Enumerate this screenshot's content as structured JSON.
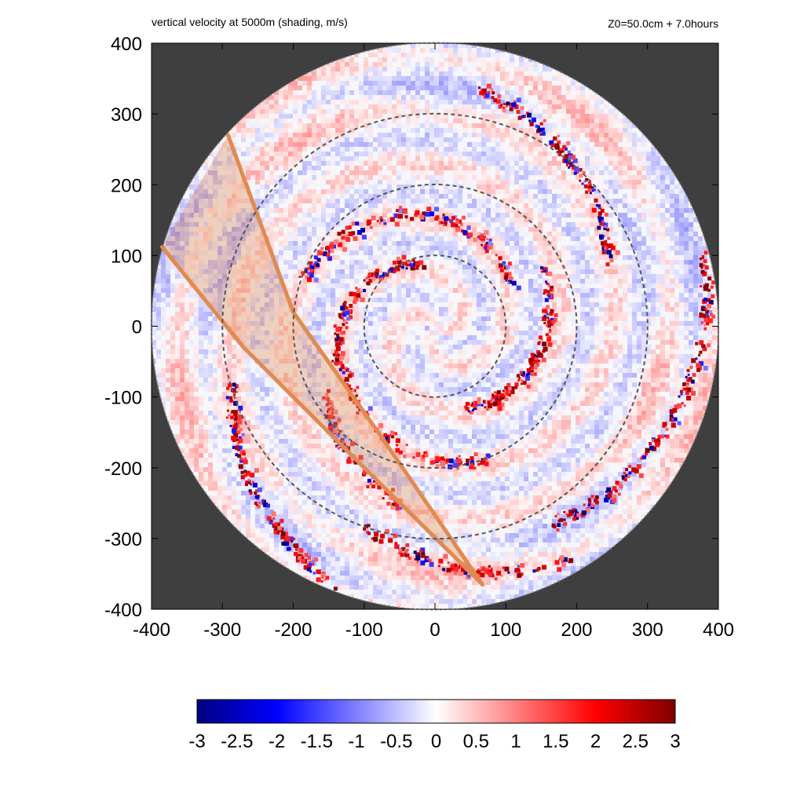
{
  "header": {
    "title": "vertical velocity at 5000m (shading, m/s)",
    "info": "Z0=50.0cm  + 7.0hours"
  },
  "chart_data": {
    "type": "heatmap",
    "title": "vertical velocity at 5000m (shading, m/s)",
    "annotation": "Z0=50.0cm  + 7.0hours",
    "xlabel": "",
    "ylabel": "",
    "xlim": [
      -400,
      400
    ],
    "ylim": [
      -400,
      400
    ],
    "x_ticks": [
      -400,
      -300,
      -200,
      -100,
      0,
      100,
      200,
      300,
      400
    ],
    "y_ticks": [
      -400,
      -300,
      -200,
      -100,
      0,
      100,
      200,
      300,
      400
    ],
    "grid": false,
    "domain_radius": 400,
    "range_rings": [
      100,
      200,
      300
    ],
    "colorbar": {
      "range": [
        -3,
        3
      ],
      "ticks": [
        -3,
        -2.5,
        -2,
        -1.5,
        -1,
        -0.5,
        0,
        0.5,
        1,
        1.5,
        2,
        2.5,
        3
      ],
      "colors": [
        "#00007f",
        "#0000ff",
        "#ffffff",
        "#ff0000",
        "#7f0000"
      ],
      "placement": "bottom"
    },
    "background_color": "#3f3f3f",
    "sector_color": "#e08a50",
    "sector": {
      "apex": [
        67,
        -365
      ],
      "edge_1": [
        [
          67,
          -365
        ],
        [
          -80,
          -150
        ],
        [
          -200,
          20
        ],
        [
          -292,
          270
        ]
      ],
      "edge_2": [
        [
          67,
          -365
        ],
        [
          -120,
          -180
        ],
        [
          -270,
          -30
        ],
        [
          -385,
          112
        ]
      ]
    }
  }
}
